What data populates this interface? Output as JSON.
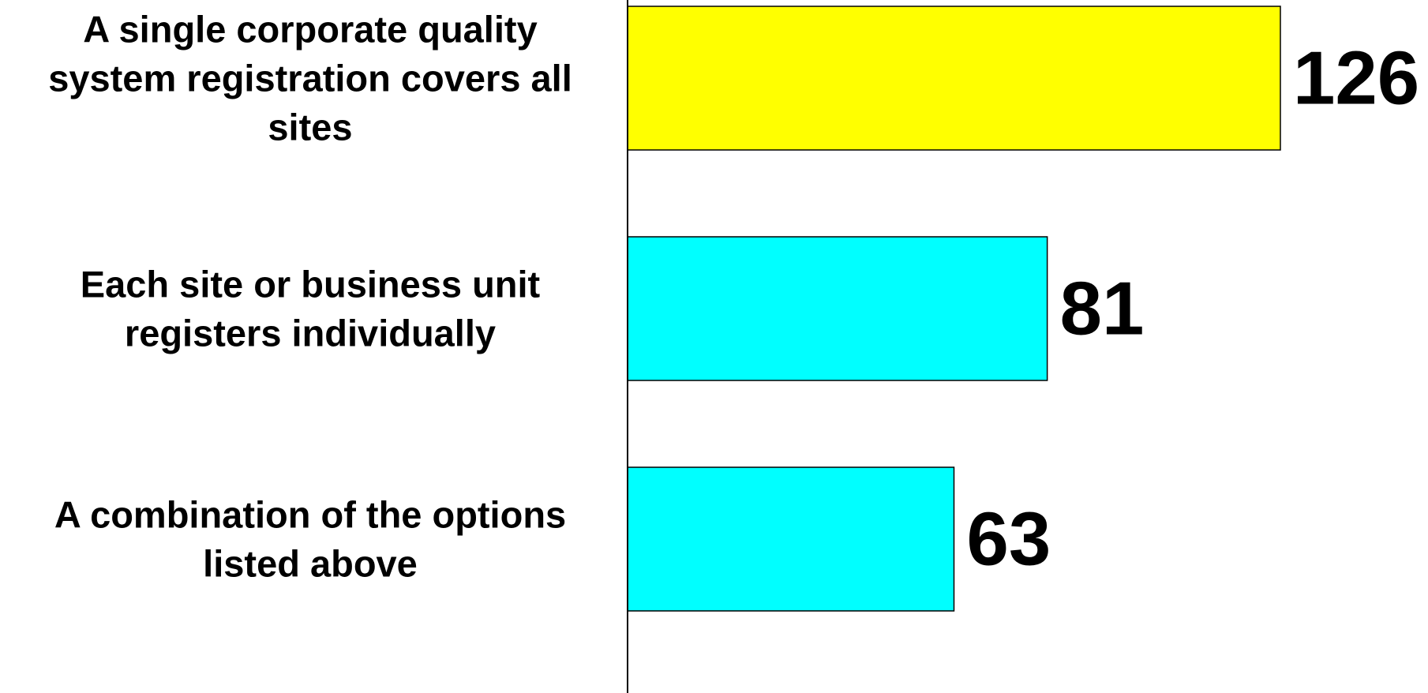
{
  "chart_data": {
    "type": "bar",
    "orientation": "horizontal",
    "categories": [
      "A single corporate quality system registration covers all sites",
      "Each site or business unit registers individually",
      "A combination of the options listed above"
    ],
    "category_lines": [
      [
        "A single corporate quality",
        "system registration covers all",
        "sites"
      ],
      [
        "Each site or business unit",
        "registers individually"
      ],
      [
        "A combination of the options",
        "listed above"
      ]
    ],
    "values": [
      126,
      81,
      63
    ],
    "bar_colors": [
      "#FFFF00",
      "#00FFFF",
      "#00FFFF"
    ],
    "data_labels": [
      "126",
      "81",
      "63"
    ],
    "xlim": [
      0,
      126
    ],
    "grid": false,
    "title": "",
    "xlabel": "",
    "ylabel": ""
  }
}
